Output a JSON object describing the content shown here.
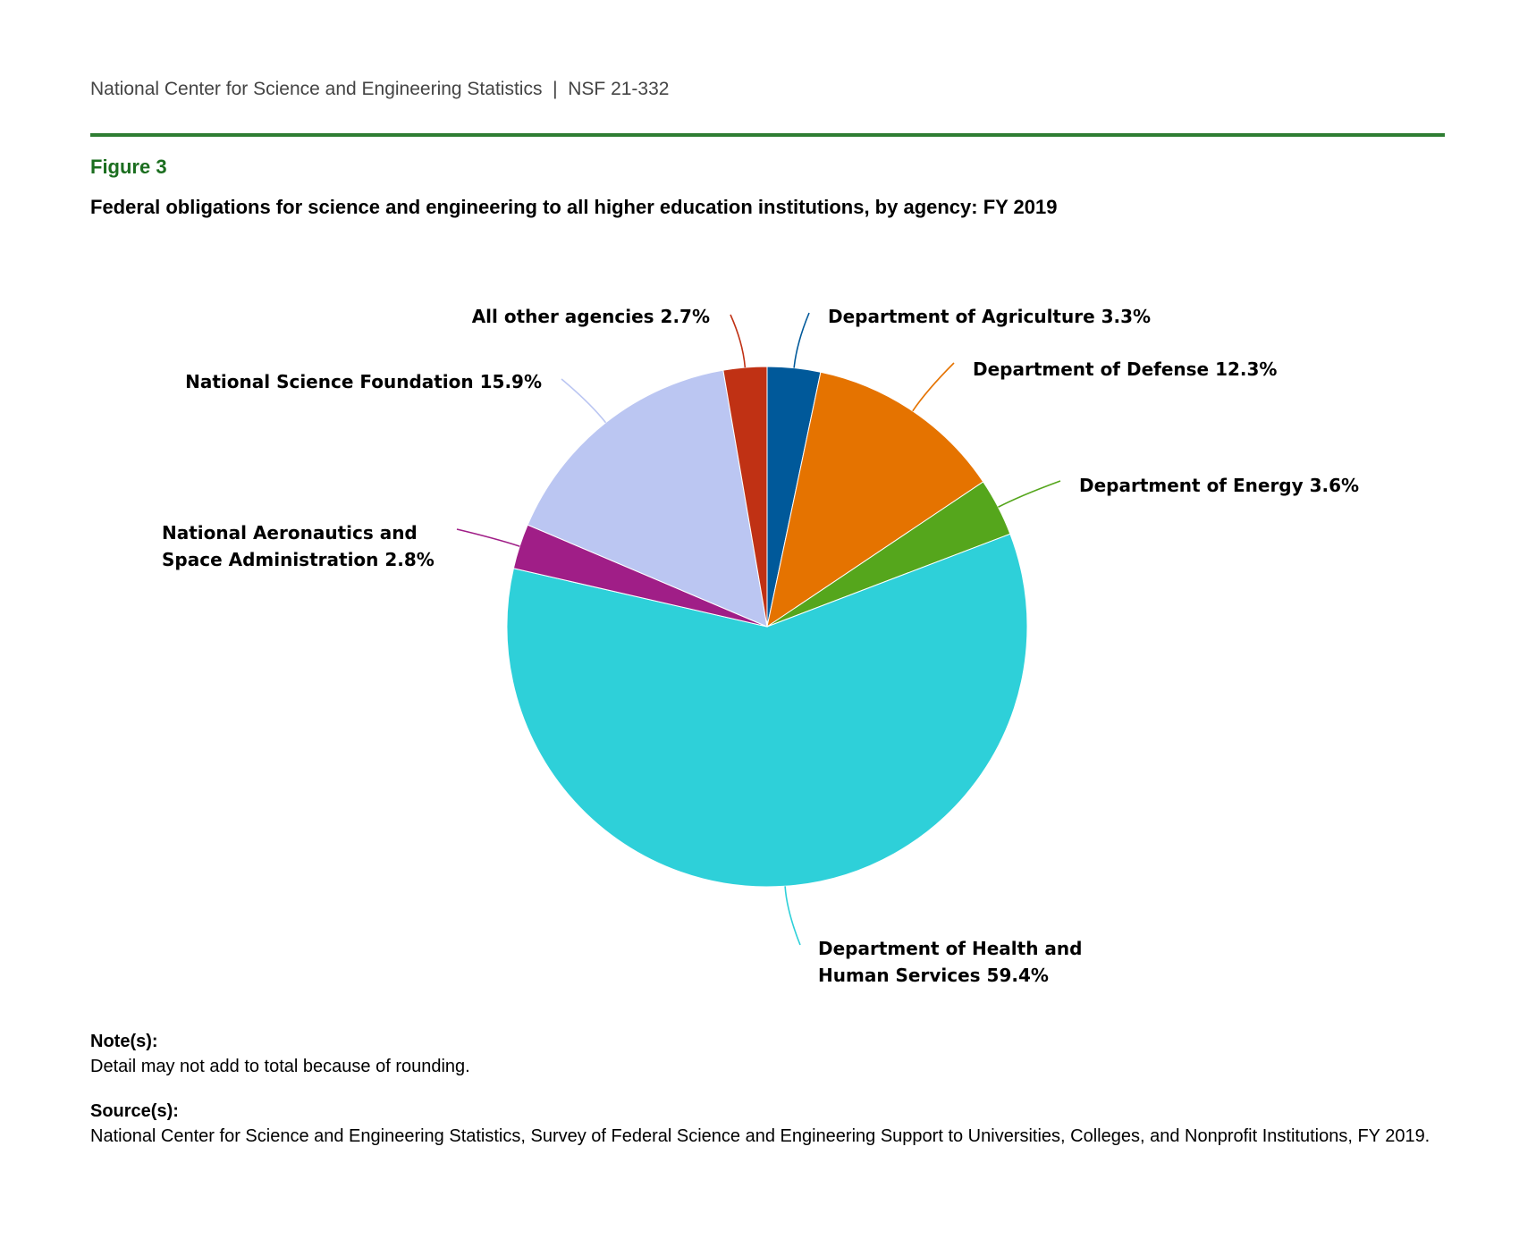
{
  "header": {
    "text": "National Center for Science and Engineering Statistics  |  NSF 21-332"
  },
  "figure_label": "Figure 3",
  "chart_data": {
    "type": "pie",
    "title": "Federal obligations for science and engineering to all higher education institutions, by agency: FY 2019",
    "start": "top, clockwise",
    "slices": [
      {
        "name": "Department of Agriculture",
        "value": 3.3,
        "label": "Department of Agriculture 3.3%",
        "color": "#00599a"
      },
      {
        "name": "Department of Defense",
        "value": 12.3,
        "label": "Department of Defense 12.3%",
        "color": "#e57300"
      },
      {
        "name": "Department of Energy",
        "value": 3.6,
        "label": "Department of Energy 3.6%",
        "color": "#55a61c"
      },
      {
        "name": "Department of Health and Human Services",
        "value": 59.4,
        "label_lines": [
          "Department of Health and",
          "Human Services 59.4%"
        ],
        "color": "#2ed0d9"
      },
      {
        "name": "National Aeronautics and Space Administration",
        "value": 2.8,
        "label_lines": [
          "National Aeronautics and",
          "Space Administration 2.8%"
        ],
        "color": "#a01e87"
      },
      {
        "name": "National Science Foundation",
        "value": 15.9,
        "label": "National Science Foundation 15.9%",
        "color": "#bbc6f2"
      },
      {
        "name": "All other agencies",
        "value": 2.7,
        "label": "All other agencies 2.7%",
        "color": "#c03114"
      }
    ]
  },
  "notes": {
    "heading": "Note(s):",
    "text": "Detail may not add to total because of rounding."
  },
  "sources": {
    "heading": "Source(s):",
    "text": "National Center for Science and Engineering Statistics, Survey of Federal Science and Engineering Support to Universities, Colleges, and Nonprofit Institutions, FY 2019."
  }
}
